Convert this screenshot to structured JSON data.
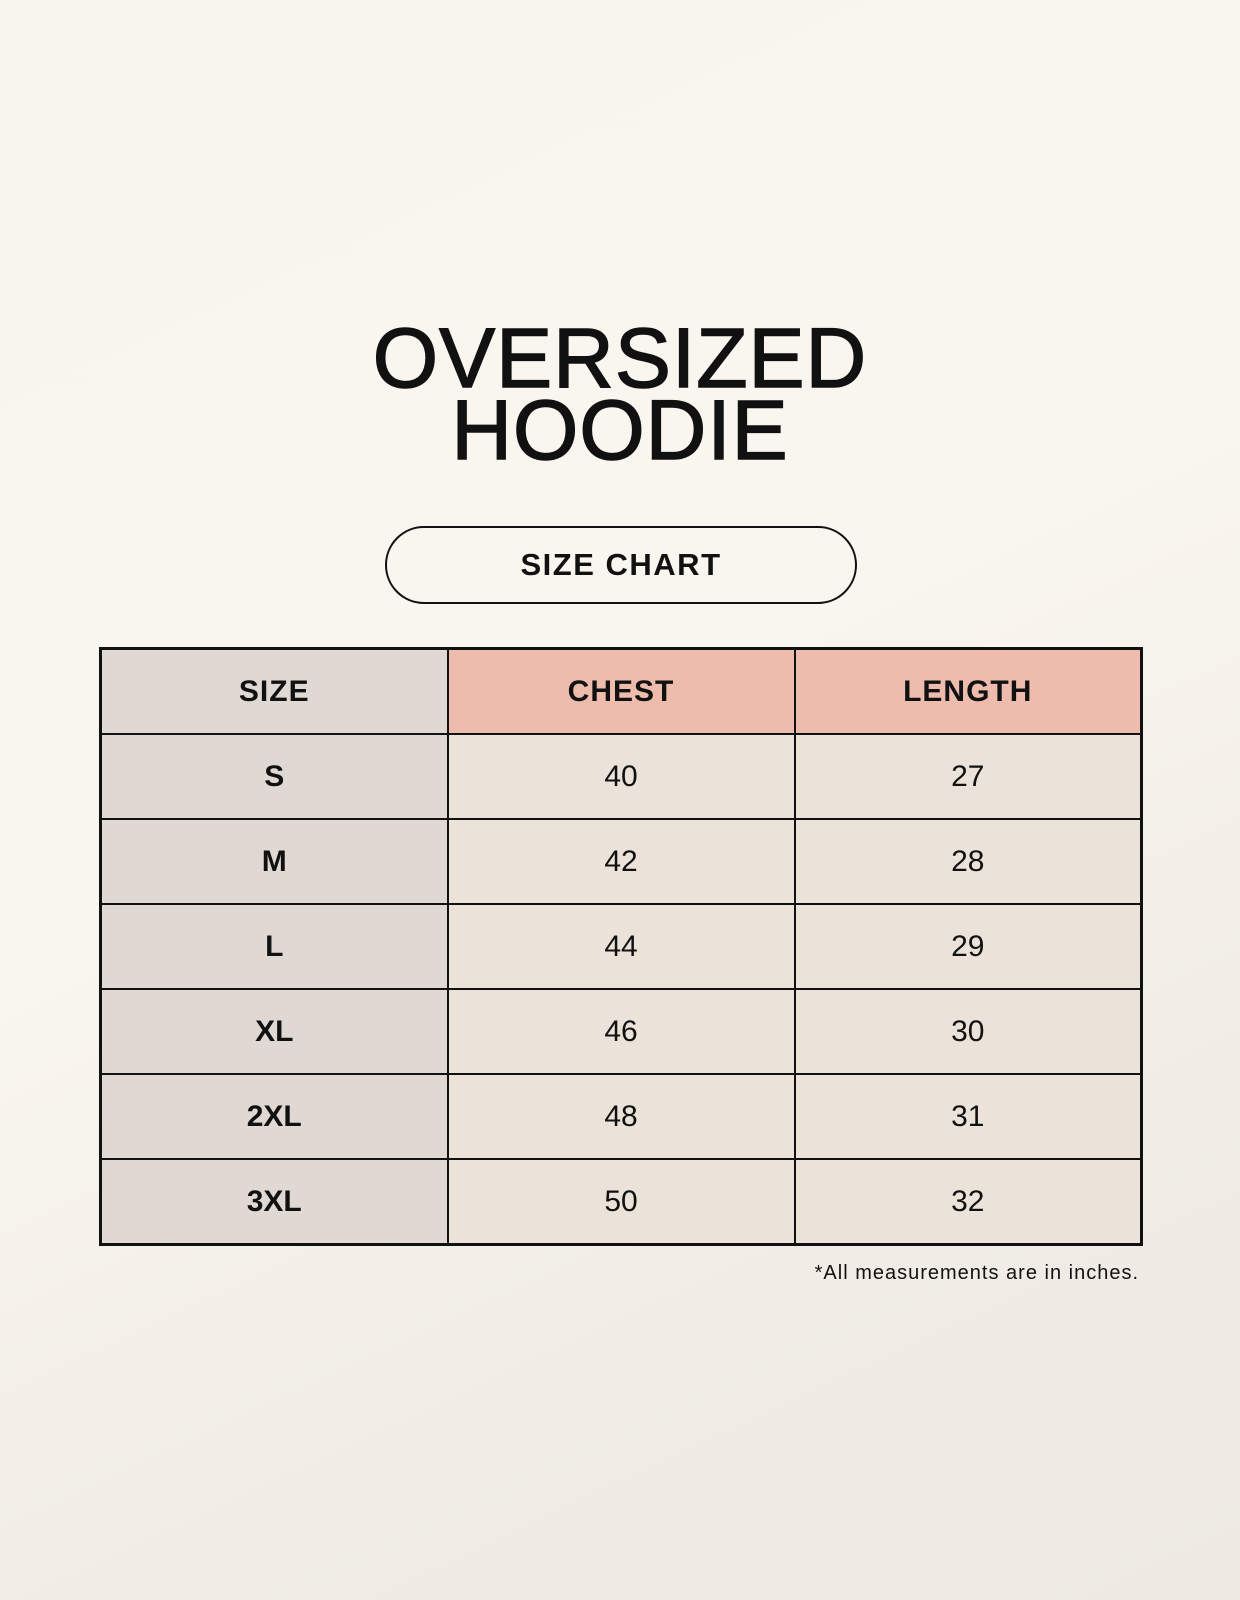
{
  "title": {
    "line1": "OVERSIZED",
    "line2": "HOODIE"
  },
  "subtitle": "SIZE CHART",
  "table": {
    "headers": [
      "SIZE",
      "CHEST",
      "LENGTH"
    ],
    "rows": [
      [
        "S",
        "40",
        "27"
      ],
      [
        "M",
        "42",
        "28"
      ],
      [
        "L",
        "44",
        "29"
      ],
      [
        "XL",
        "46",
        "30"
      ],
      [
        "2XL",
        "48",
        "31"
      ],
      [
        "3XL",
        "50",
        "32"
      ]
    ]
  },
  "footnote": "*All measurements are in inches.",
  "colors": {
    "size_column": "#e0d9d3",
    "header_accent": "#edbcad",
    "cell": "#ebe3d9",
    "background": "#f8f5ee"
  }
}
